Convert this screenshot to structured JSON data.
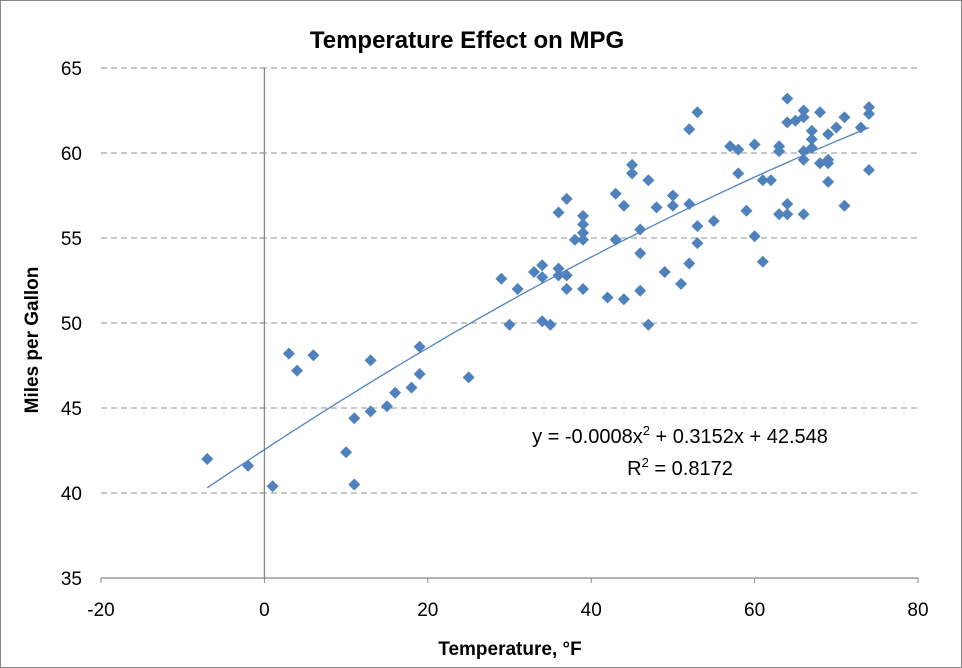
{
  "chart_data": {
    "type": "scatter",
    "title": "Temperature Effect on MPG",
    "xlabel": "Temperature, °F",
    "ylabel": "Miles per Gallon",
    "xlim": [
      -20,
      80
    ],
    "ylim": [
      35,
      65
    ],
    "xticks": [
      -20,
      0,
      20,
      40,
      60,
      80
    ],
    "yticks": [
      35,
      40,
      45,
      50,
      55,
      60,
      65
    ],
    "grid": "horizontal dashed",
    "legend": "none",
    "marker_color": "#4F81BD",
    "marker": "diamond",
    "trendline": {
      "type": "polynomial order 2",
      "coefficients": {
        "a": -0.0008,
        "b": 0.3152,
        "c": 42.548
      },
      "x_range": [
        -7,
        74
      ],
      "equation_parts": [
        "y = -0.0008x",
        "2",
        " + 0.3152x + 42.548"
      ],
      "r2_parts": [
        "R",
        "2",
        " = 0.8172"
      ]
    },
    "points": [
      [
        -7,
        42.0
      ],
      [
        -2,
        41.6
      ],
      [
        1,
        40.4
      ],
      [
        3,
        48.2
      ],
      [
        4,
        47.2
      ],
      [
        6,
        48.1
      ],
      [
        10,
        42.4
      ],
      [
        11,
        44.4
      ],
      [
        11,
        40.5
      ],
      [
        13,
        47.8
      ],
      [
        13,
        44.8
      ],
      [
        15,
        45.1
      ],
      [
        16,
        45.9
      ],
      [
        18,
        46.2
      ],
      [
        19,
        48.6
      ],
      [
        19,
        47.0
      ],
      [
        25,
        46.8
      ],
      [
        29,
        52.6
      ],
      [
        30,
        49.9
      ],
      [
        31,
        52.0
      ],
      [
        33,
        53.0
      ],
      [
        34,
        53.4
      ],
      [
        34,
        52.7
      ],
      [
        34,
        50.1
      ],
      [
        35,
        49.9
      ],
      [
        36,
        56.5
      ],
      [
        36,
        53.2
      ],
      [
        36,
        52.8
      ],
      [
        37,
        57.3
      ],
      [
        37,
        52.8
      ],
      [
        37,
        52.0
      ],
      [
        38,
        54.9
      ],
      [
        39,
        56.3
      ],
      [
        39,
        55.8
      ],
      [
        39,
        55.3
      ],
      [
        39,
        54.9
      ],
      [
        39,
        52.0
      ],
      [
        42,
        51.5
      ],
      [
        43,
        57.6
      ],
      [
        43,
        54.9
      ],
      [
        44,
        56.9
      ],
      [
        44,
        51.4
      ],
      [
        45,
        59.3
      ],
      [
        45,
        58.8
      ],
      [
        46,
        55.5
      ],
      [
        46,
        54.1
      ],
      [
        46,
        51.9
      ],
      [
        47,
        58.4
      ],
      [
        47,
        49.9
      ],
      [
        48,
        56.8
      ],
      [
        49,
        53.0
      ],
      [
        50,
        57.5
      ],
      [
        50,
        56.9
      ],
      [
        51,
        52.3
      ],
      [
        52,
        61.4
      ],
      [
        52,
        57.0
      ],
      [
        52,
        53.5
      ],
      [
        53,
        62.4
      ],
      [
        53,
        55.7
      ],
      [
        53,
        54.7
      ],
      [
        55,
        56.0
      ],
      [
        57,
        60.4
      ],
      [
        58,
        60.2
      ],
      [
        58,
        58.8
      ],
      [
        59,
        56.6
      ],
      [
        60,
        60.5
      ],
      [
        60,
        55.1
      ],
      [
        61,
        58.4
      ],
      [
        61,
        53.6
      ],
      [
        62,
        58.4
      ],
      [
        63,
        60.4
      ],
      [
        63,
        60.1
      ],
      [
        63,
        56.4
      ],
      [
        64,
        63.2
      ],
      [
        64,
        61.8
      ],
      [
        64,
        57.0
      ],
      [
        64,
        56.4
      ],
      [
        65,
        61.9
      ],
      [
        66,
        62.5
      ],
      [
        66,
        62.1
      ],
      [
        66,
        60.1
      ],
      [
        66,
        59.6
      ],
      [
        66,
        56.4
      ],
      [
        67,
        61.3
      ],
      [
        67,
        60.8
      ],
      [
        67,
        60.3
      ],
      [
        68,
        62.4
      ],
      [
        68,
        59.4
      ],
      [
        69,
        59.4
      ],
      [
        69,
        58.3
      ],
      [
        69,
        61.1
      ],
      [
        69,
        59.6
      ],
      [
        70,
        61.5
      ],
      [
        71,
        62.1
      ],
      [
        71,
        56.9
      ],
      [
        73,
        61.5
      ],
      [
        74,
        62.7
      ],
      [
        74,
        62.3
      ],
      [
        74,
        59.0
      ]
    ]
  }
}
